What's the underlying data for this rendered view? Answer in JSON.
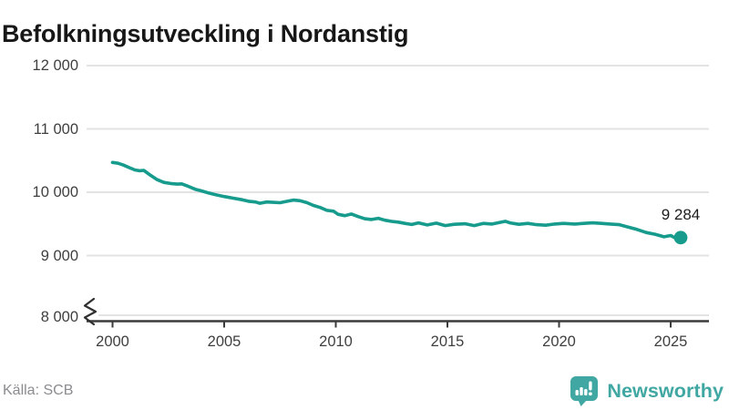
{
  "title": "Befolkningsutveckling i Nordanstig",
  "footer": {
    "source": "Källa: SCB",
    "brand_name": "Newsworthy"
  },
  "colors": {
    "line": "#169b8d",
    "brand": "#41a7a2",
    "grid": "#e3e3e3",
    "axis": "#3b3b3b"
  },
  "chart_data": {
    "type": "line",
    "title": "Befolkningsutveckling i Nordanstig",
    "xlabel": "",
    "ylabel": "",
    "grid": "horizontal",
    "x_axis": {
      "ticks": [
        {
          "value": 2000,
          "label": "2000"
        },
        {
          "value": 2005,
          "label": "2005"
        },
        {
          "value": 2010,
          "label": "2010"
        },
        {
          "value": 2015,
          "label": "2015"
        },
        {
          "value": 2020,
          "label": "2020"
        },
        {
          "value": 2025,
          "label": "2025"
        }
      ]
    },
    "y_axis": {
      "ticks": [
        {
          "value": 12000,
          "label": "12 000"
        },
        {
          "value": 11000,
          "label": "11 000"
        },
        {
          "value": 10000,
          "label": "10 000"
        },
        {
          "value": 9000,
          "label": "9 000"
        },
        {
          "value": 8000,
          "label": "8 000"
        }
      ],
      "displayed_range": [
        8000,
        12000
      ],
      "broken_axis": true
    },
    "series": [
      {
        "name": "Befolkning",
        "color": "#169b8d",
        "points": [
          [
            2000.0,
            10470
          ],
          [
            2000.25,
            10458
          ],
          [
            2000.5,
            10428
          ],
          [
            2000.75,
            10388
          ],
          [
            2001.0,
            10352
          ],
          [
            2001.2,
            10340
          ],
          [
            2001.4,
            10345
          ],
          [
            2001.7,
            10268
          ],
          [
            2002.0,
            10198
          ],
          [
            2002.3,
            10155
          ],
          [
            2002.6,
            10138
          ],
          [
            2002.9,
            10128
          ],
          [
            2003.1,
            10132
          ],
          [
            2003.4,
            10092
          ],
          [
            2003.7,
            10048
          ],
          [
            2004.0,
            10020
          ],
          [
            2004.3,
            9988
          ],
          [
            2004.6,
            9962
          ],
          [
            2005.0,
            9932
          ],
          [
            2005.4,
            9906
          ],
          [
            2005.8,
            9882
          ],
          [
            2006.1,
            9858
          ],
          [
            2006.4,
            9846
          ],
          [
            2006.6,
            9826
          ],
          [
            2006.9,
            9846
          ],
          [
            2007.2,
            9840
          ],
          [
            2007.5,
            9834
          ],
          [
            2007.8,
            9856
          ],
          [
            2008.1,
            9876
          ],
          [
            2008.4,
            9866
          ],
          [
            2008.7,
            9836
          ],
          [
            2009.0,
            9792
          ],
          [
            2009.3,
            9760
          ],
          [
            2009.6,
            9714
          ],
          [
            2009.9,
            9700
          ],
          [
            2010.1,
            9652
          ],
          [
            2010.4,
            9630
          ],
          [
            2010.7,
            9656
          ],
          [
            2011.0,
            9616
          ],
          [
            2011.3,
            9582
          ],
          [
            2011.6,
            9570
          ],
          [
            2011.9,
            9588
          ],
          [
            2012.2,
            9558
          ],
          [
            2012.5,
            9540
          ],
          [
            2012.8,
            9528
          ],
          [
            2013.1,
            9508
          ],
          [
            2013.4,
            9490
          ],
          [
            2013.7,
            9517
          ],
          [
            2014.1,
            9484
          ],
          [
            2014.5,
            9512
          ],
          [
            2014.9,
            9474
          ],
          [
            2015.3,
            9494
          ],
          [
            2015.8,
            9502
          ],
          [
            2016.2,
            9474
          ],
          [
            2016.6,
            9508
          ],
          [
            2017.0,
            9498
          ],
          [
            2017.4,
            9527
          ],
          [
            2017.6,
            9541
          ],
          [
            2017.8,
            9517
          ],
          [
            2018.2,
            9494
          ],
          [
            2018.6,
            9508
          ],
          [
            2019.0,
            9488
          ],
          [
            2019.4,
            9479
          ],
          [
            2019.8,
            9498
          ],
          [
            2020.2,
            9508
          ],
          [
            2020.7,
            9498
          ],
          [
            2021.1,
            9508
          ],
          [
            2021.5,
            9517
          ],
          [
            2021.9,
            9508
          ],
          [
            2022.3,
            9498
          ],
          [
            2022.7,
            9488
          ],
          [
            2023.1,
            9450
          ],
          [
            2023.5,
            9412
          ],
          [
            2023.9,
            9364
          ],
          [
            2024.3,
            9336
          ],
          [
            2024.7,
            9297
          ],
          [
            2025.0,
            9316
          ],
          [
            2025.2,
            9278
          ],
          [
            2025.45,
            9284
          ]
        ]
      }
    ],
    "end_label": {
      "text": "9 284",
      "value": 9284
    }
  }
}
